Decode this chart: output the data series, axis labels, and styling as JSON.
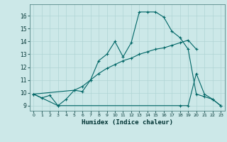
{
  "xlabel": "Humidex (Indice chaleur)",
  "bg_color": "#cce8e8",
  "grid_color": "#b0d4d4",
  "line_color": "#006666",
  "xlim": [
    -0.5,
    23.5
  ],
  "ylim": [
    8.6,
    16.9
  ],
  "yticks": [
    9,
    10,
    11,
    12,
    13,
    14,
    15,
    16
  ],
  "xticks": [
    0,
    1,
    2,
    3,
    4,
    5,
    6,
    7,
    8,
    9,
    10,
    11,
    12,
    13,
    14,
    15,
    16,
    17,
    18,
    19,
    20,
    21,
    22,
    23
  ],
  "line1_x": [
    0,
    1,
    2,
    3,
    4,
    5,
    6,
    7,
    8,
    9,
    10,
    11,
    12,
    13,
    14,
    15,
    16,
    17,
    18,
    19,
    20,
    21,
    22,
    23
  ],
  "line1_y": [
    9.9,
    9.6,
    9.8,
    9.0,
    9.5,
    10.2,
    10.1,
    11.0,
    12.5,
    13.0,
    14.0,
    12.8,
    13.9,
    16.3,
    16.3,
    16.3,
    15.9,
    14.8,
    14.3,
    13.4,
    9.9,
    9.7,
    9.5,
    9.0
  ],
  "line2_x": [
    0,
    5,
    6,
    7,
    8,
    9,
    10,
    11,
    12,
    13,
    14,
    15,
    16,
    17,
    18,
    19,
    20
  ],
  "line2_y": [
    9.9,
    10.2,
    10.5,
    11.0,
    11.5,
    11.9,
    12.2,
    12.5,
    12.7,
    13.0,
    13.2,
    13.4,
    13.5,
    13.7,
    13.9,
    14.1,
    13.4
  ],
  "line3_x": [
    0,
    3,
    18,
    19,
    20,
    21,
    22,
    23
  ],
  "line3_y": [
    9.9,
    9.0,
    9.0,
    9.0,
    11.5,
    9.9,
    9.5,
    9.0
  ]
}
